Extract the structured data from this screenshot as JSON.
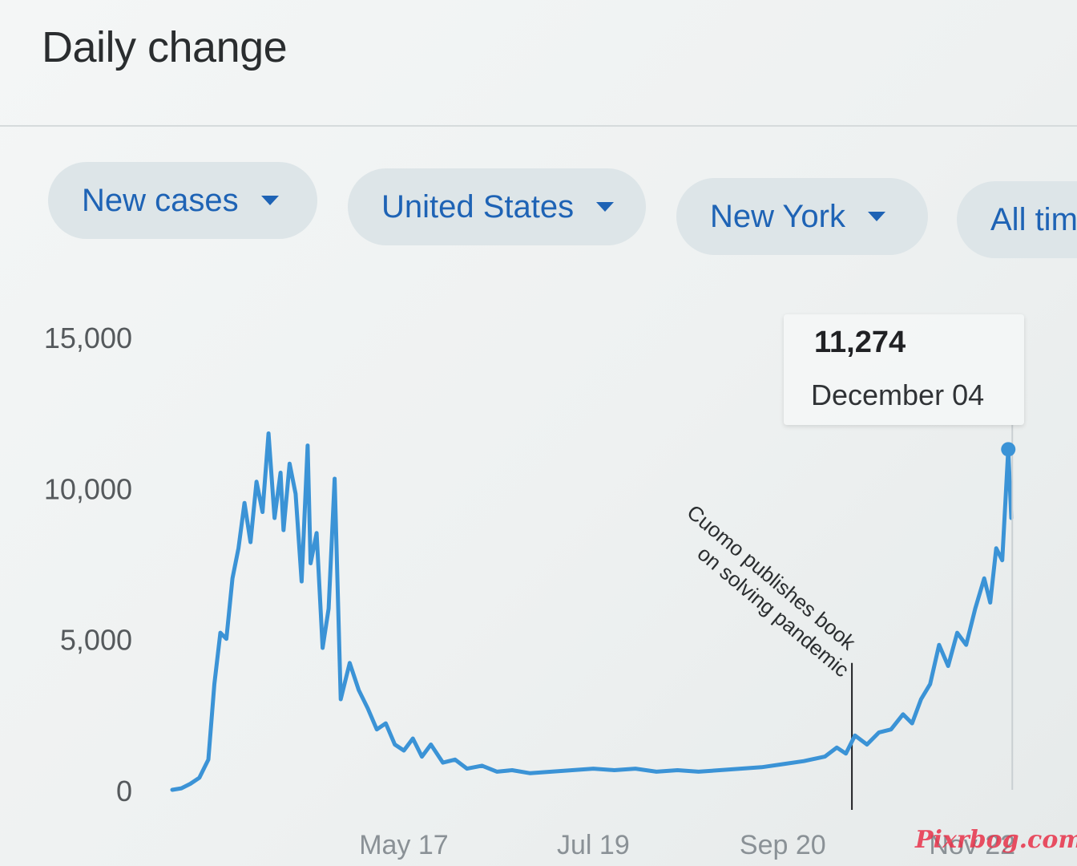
{
  "header": {
    "title": "Daily change"
  },
  "filters": {
    "metric": "New cases",
    "country": "United States",
    "region": "New York",
    "range": "All time"
  },
  "tooltip": {
    "value": "11,274",
    "date": "December 04"
  },
  "watermark": "Pixrbog.com",
  "colors": {
    "line": "#3b93d6",
    "chip_bg": "#dde5e8",
    "chip_text": "#1e63b5"
  },
  "icons": {
    "dropdown": "caret-down-icon"
  },
  "chart_data": {
    "type": "line",
    "title": "",
    "xlabel": "",
    "ylabel": "",
    "ylim": [
      0,
      15000
    ],
    "yticks": [
      0,
      5000,
      10000,
      15000
    ],
    "ytick_labels": [
      "0",
      "5,000",
      "10,000",
      "15,000"
    ],
    "xtick_labels": [
      "May 17",
      "Jul 19",
      "Sep 20",
      "Nov 22"
    ],
    "grid": false,
    "annotation": {
      "label_line1": "Cuomo publishes book",
      "label_line2": "on solving pandemic",
      "date": "Oct 13"
    },
    "highlight": {
      "date": "Dec 04",
      "value": 11274
    },
    "series": [
      {
        "name": "",
        "points": [
          [
            "Mar 01",
            0
          ],
          [
            "Mar 04",
            50
          ],
          [
            "Mar 07",
            200
          ],
          [
            "Mar 10",
            400
          ],
          [
            "Mar 13",
            1000
          ],
          [
            "Mar 15",
            3500
          ],
          [
            "Mar 17",
            5200
          ],
          [
            "Mar 19",
            5000
          ],
          [
            "Mar 21",
            7000
          ],
          [
            "Mar 23",
            8000
          ],
          [
            "Mar 25",
            9500
          ],
          [
            "Mar 27",
            8200
          ],
          [
            "Mar 29",
            10200
          ],
          [
            "Mar 31",
            9200
          ],
          [
            "Apr 02",
            11800
          ],
          [
            "Apr 04",
            9000
          ],
          [
            "Apr 06",
            10500
          ],
          [
            "Apr 07",
            8600
          ],
          [
            "Apr 09",
            10800
          ],
          [
            "Apr 11",
            9800
          ],
          [
            "Apr 13",
            6900
          ],
          [
            "Apr 15",
            11400
          ],
          [
            "Apr 16",
            7500
          ],
          [
            "Apr 18",
            8500
          ],
          [
            "Apr 20",
            4700
          ],
          [
            "Apr 22",
            6000
          ],
          [
            "Apr 24",
            10300
          ],
          [
            "Apr 26",
            3000
          ],
          [
            "Apr 29",
            4200
          ],
          [
            "May 02",
            3300
          ],
          [
            "May 05",
            2700
          ],
          [
            "May 08",
            2000
          ],
          [
            "May 11",
            2200
          ],
          [
            "May 14",
            1500
          ],
          [
            "May 17",
            1300
          ],
          [
            "May 20",
            1700
          ],
          [
            "May 23",
            1100
          ],
          [
            "May 26",
            1500
          ],
          [
            "May 30",
            900
          ],
          [
            "Jun 03",
            1000
          ],
          [
            "Jun 07",
            700
          ],
          [
            "Jun 12",
            800
          ],
          [
            "Jun 17",
            600
          ],
          [
            "Jun 22",
            650
          ],
          [
            "Jun 28",
            550
          ],
          [
            "Jul 05",
            600
          ],
          [
            "Jul 12",
            650
          ],
          [
            "Jul 19",
            700
          ],
          [
            "Jul 26",
            650
          ],
          [
            "Aug 02",
            700
          ],
          [
            "Aug 09",
            600
          ],
          [
            "Aug 16",
            650
          ],
          [
            "Aug 23",
            600
          ],
          [
            "Aug 30",
            650
          ],
          [
            "Sep 06",
            700
          ],
          [
            "Sep 13",
            750
          ],
          [
            "Sep 20",
            850
          ],
          [
            "Sep 27",
            950
          ],
          [
            "Oct 04",
            1100
          ],
          [
            "Oct 08",
            1400
          ],
          [
            "Oct 11",
            1200
          ],
          [
            "Oct 14",
            1800
          ],
          [
            "Oct 18",
            1500
          ],
          [
            "Oct 22",
            1900
          ],
          [
            "Oct 26",
            2000
          ],
          [
            "Oct 30",
            2500
          ],
          [
            "Nov 02",
            2200
          ],
          [
            "Nov 05",
            3000
          ],
          [
            "Nov 08",
            3500
          ],
          [
            "Nov 11",
            4800
          ],
          [
            "Nov 14",
            4100
          ],
          [
            "Nov 17",
            5200
          ],
          [
            "Nov 20",
            4800
          ],
          [
            "Nov 23",
            6000
          ],
          [
            "Nov 26",
            7000
          ],
          [
            "Nov 28",
            6200
          ],
          [
            "Nov 30",
            8000
          ],
          [
            "Dec 02",
            7600
          ],
          [
            "Dec 04",
            11274
          ],
          [
            "Dec 05",
            9000
          ]
        ]
      }
    ]
  }
}
